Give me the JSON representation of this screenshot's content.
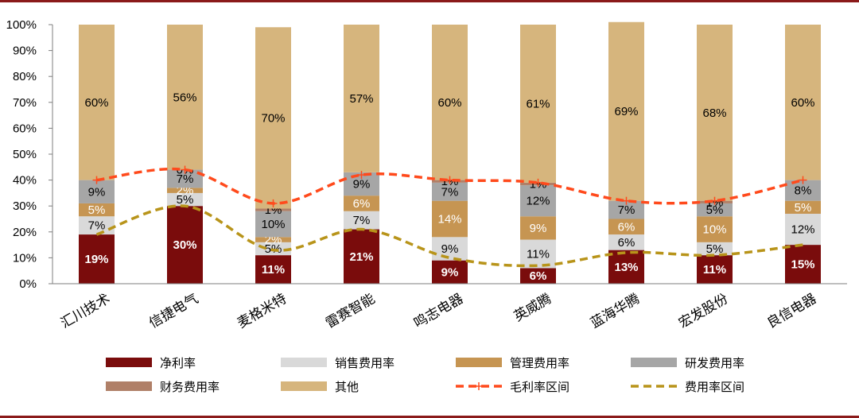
{
  "chart_data": {
    "type": "bar",
    "stacked": true,
    "percent": true,
    "grid": false,
    "legend_position": "bottom",
    "ylim": [
      0,
      100
    ],
    "yticks": [
      "0%",
      "10%",
      "20%",
      "30%",
      "40%",
      "50%",
      "60%",
      "70%",
      "80%",
      "90%",
      "100%"
    ],
    "categories": [
      "汇川技术",
      "信捷电气",
      "麦格米特",
      "雷赛智能",
      "鸣志电器",
      "英威腾",
      "蓝海华腾",
      "宏发股份",
      "良信电器"
    ],
    "series": [
      {
        "name": "净利率",
        "color": "#7a0c0c",
        "label_color": "#ffffff",
        "values": [
          19,
          30,
          11,
          21,
          9,
          6,
          13,
          11,
          15
        ]
      },
      {
        "name": "销售费用率",
        "color": "#d9d9d9",
        "label_color": "#000000",
        "values": [
          7,
          5,
          5,
          7,
          9,
          11,
          6,
          5,
          12
        ]
      },
      {
        "name": "管理费用率",
        "color": "#c69552",
        "label_color": "#ffffff",
        "values": [
          5,
          2,
          2,
          6,
          14,
          9,
          6,
          10,
          5
        ]
      },
      {
        "name": "研发费用率",
        "color": "#a6a6a6",
        "label_color": "#000000",
        "values": [
          9,
          7,
          10,
          9,
          7,
          12,
          7,
          5,
          8
        ]
      },
      {
        "name": "财务费用率",
        "color": "#b08068",
        "label_color": "#000000",
        "values": [
          0,
          0,
          1,
          0,
          1,
          1,
          0,
          1,
          0
        ]
      },
      {
        "name": "其他",
        "color": "#d6b57d",
        "label_color": "#000000",
        "values": [
          60,
          56,
          70,
          57,
          60,
          61,
          69,
          68,
          60
        ]
      }
    ],
    "segment_labels": [
      [
        "19%",
        "7%",
        "5%",
        "9%",
        "",
        "60%"
      ],
      [
        "30%",
        "5%",
        "2%",
        "7%",
        "0%",
        "56%"
      ],
      [
        "11%",
        "5%",
        "2%",
        "10%",
        "1%",
        "70%"
      ],
      [
        "21%",
        "7%",
        "6%",
        "9%",
        "",
        "57%"
      ],
      [
        "9%",
        "9%",
        "14%",
        "7%",
        "1%",
        "60%"
      ],
      [
        "6%",
        "11%",
        "9%",
        "12%",
        "1%",
        "61%"
      ],
      [
        "13%",
        "6%",
        "6%",
        "7%",
        "",
        "69%"
      ],
      [
        "11%",
        "5%",
        "10%",
        "5%",
        "1%",
        "68%"
      ],
      [
        "15%",
        "12%",
        "5%",
        "8%",
        "",
        "60%"
      ]
    ],
    "lines": [
      {
        "name": "毛利率区间",
        "color": "#ff4a1c",
        "values": [
          40,
          44,
          31,
          42,
          40,
          39,
          32,
          32,
          40
        ]
      },
      {
        "name": "费用率区间",
        "color": "#b8941a",
        "values": [
          19,
          30,
          13,
          21,
          10,
          7,
          12,
          11,
          15
        ]
      }
    ]
  }
}
